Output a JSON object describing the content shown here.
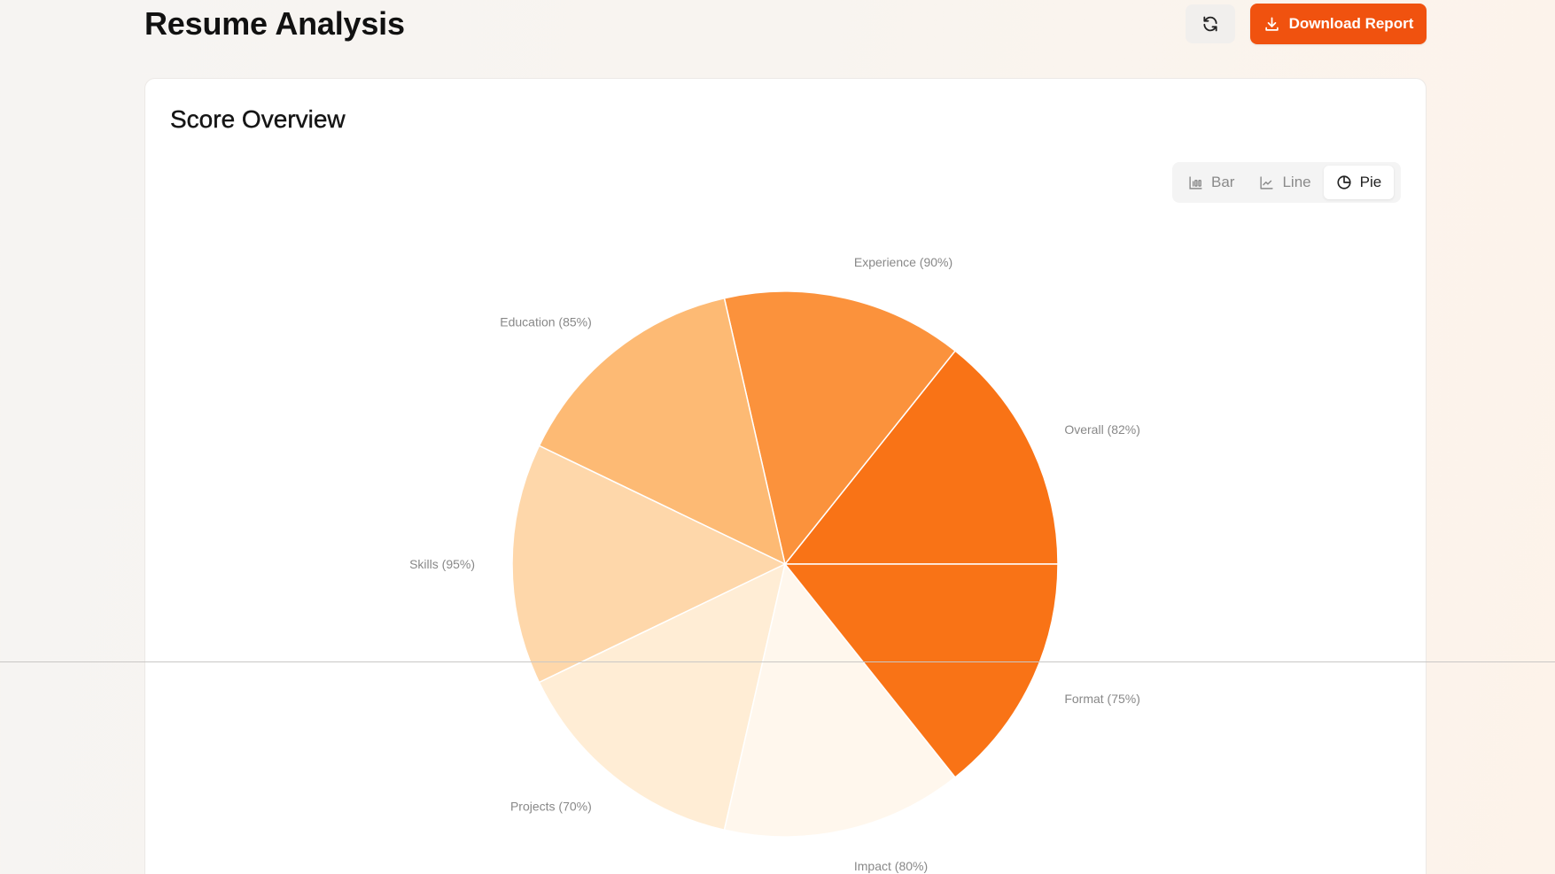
{
  "header": {
    "title": "Resume Analysis",
    "refresh_icon": "refresh-icon",
    "download_label": "Download Report",
    "download_icon": "download-icon",
    "accent_color": "#F0520F"
  },
  "card": {
    "title": "Score Overview",
    "chart_types": [
      {
        "label": "Bar",
        "icon": "bar-chart-icon",
        "active": false
      },
      {
        "label": "Line",
        "icon": "line-chart-icon",
        "active": false
      },
      {
        "label": "Pie",
        "icon": "pie-chart-icon",
        "active": true
      }
    ]
  },
  "chart_data": {
    "type": "pie",
    "title": "Score Overview",
    "categories": [
      "Overall",
      "Experience",
      "Education",
      "Skills",
      "Projects",
      "Impact",
      "Format"
    ],
    "values": [
      82,
      90,
      85,
      95,
      70,
      80,
      75
    ],
    "labels": [
      "Overall (82%)",
      "Experience (90%)",
      "Education (85%)",
      "Skills (95%)",
      "Projects (70%)",
      "Impact (80%)",
      "Format (75%)"
    ],
    "colors": [
      "#F97316",
      "#FB923C",
      "#FDBA74",
      "#FED7AA",
      "#FFEDD5",
      "#FFF7ED",
      "#F97316"
    ],
    "slice_mode": "equal",
    "legend": "none",
    "label_position": "outside"
  }
}
